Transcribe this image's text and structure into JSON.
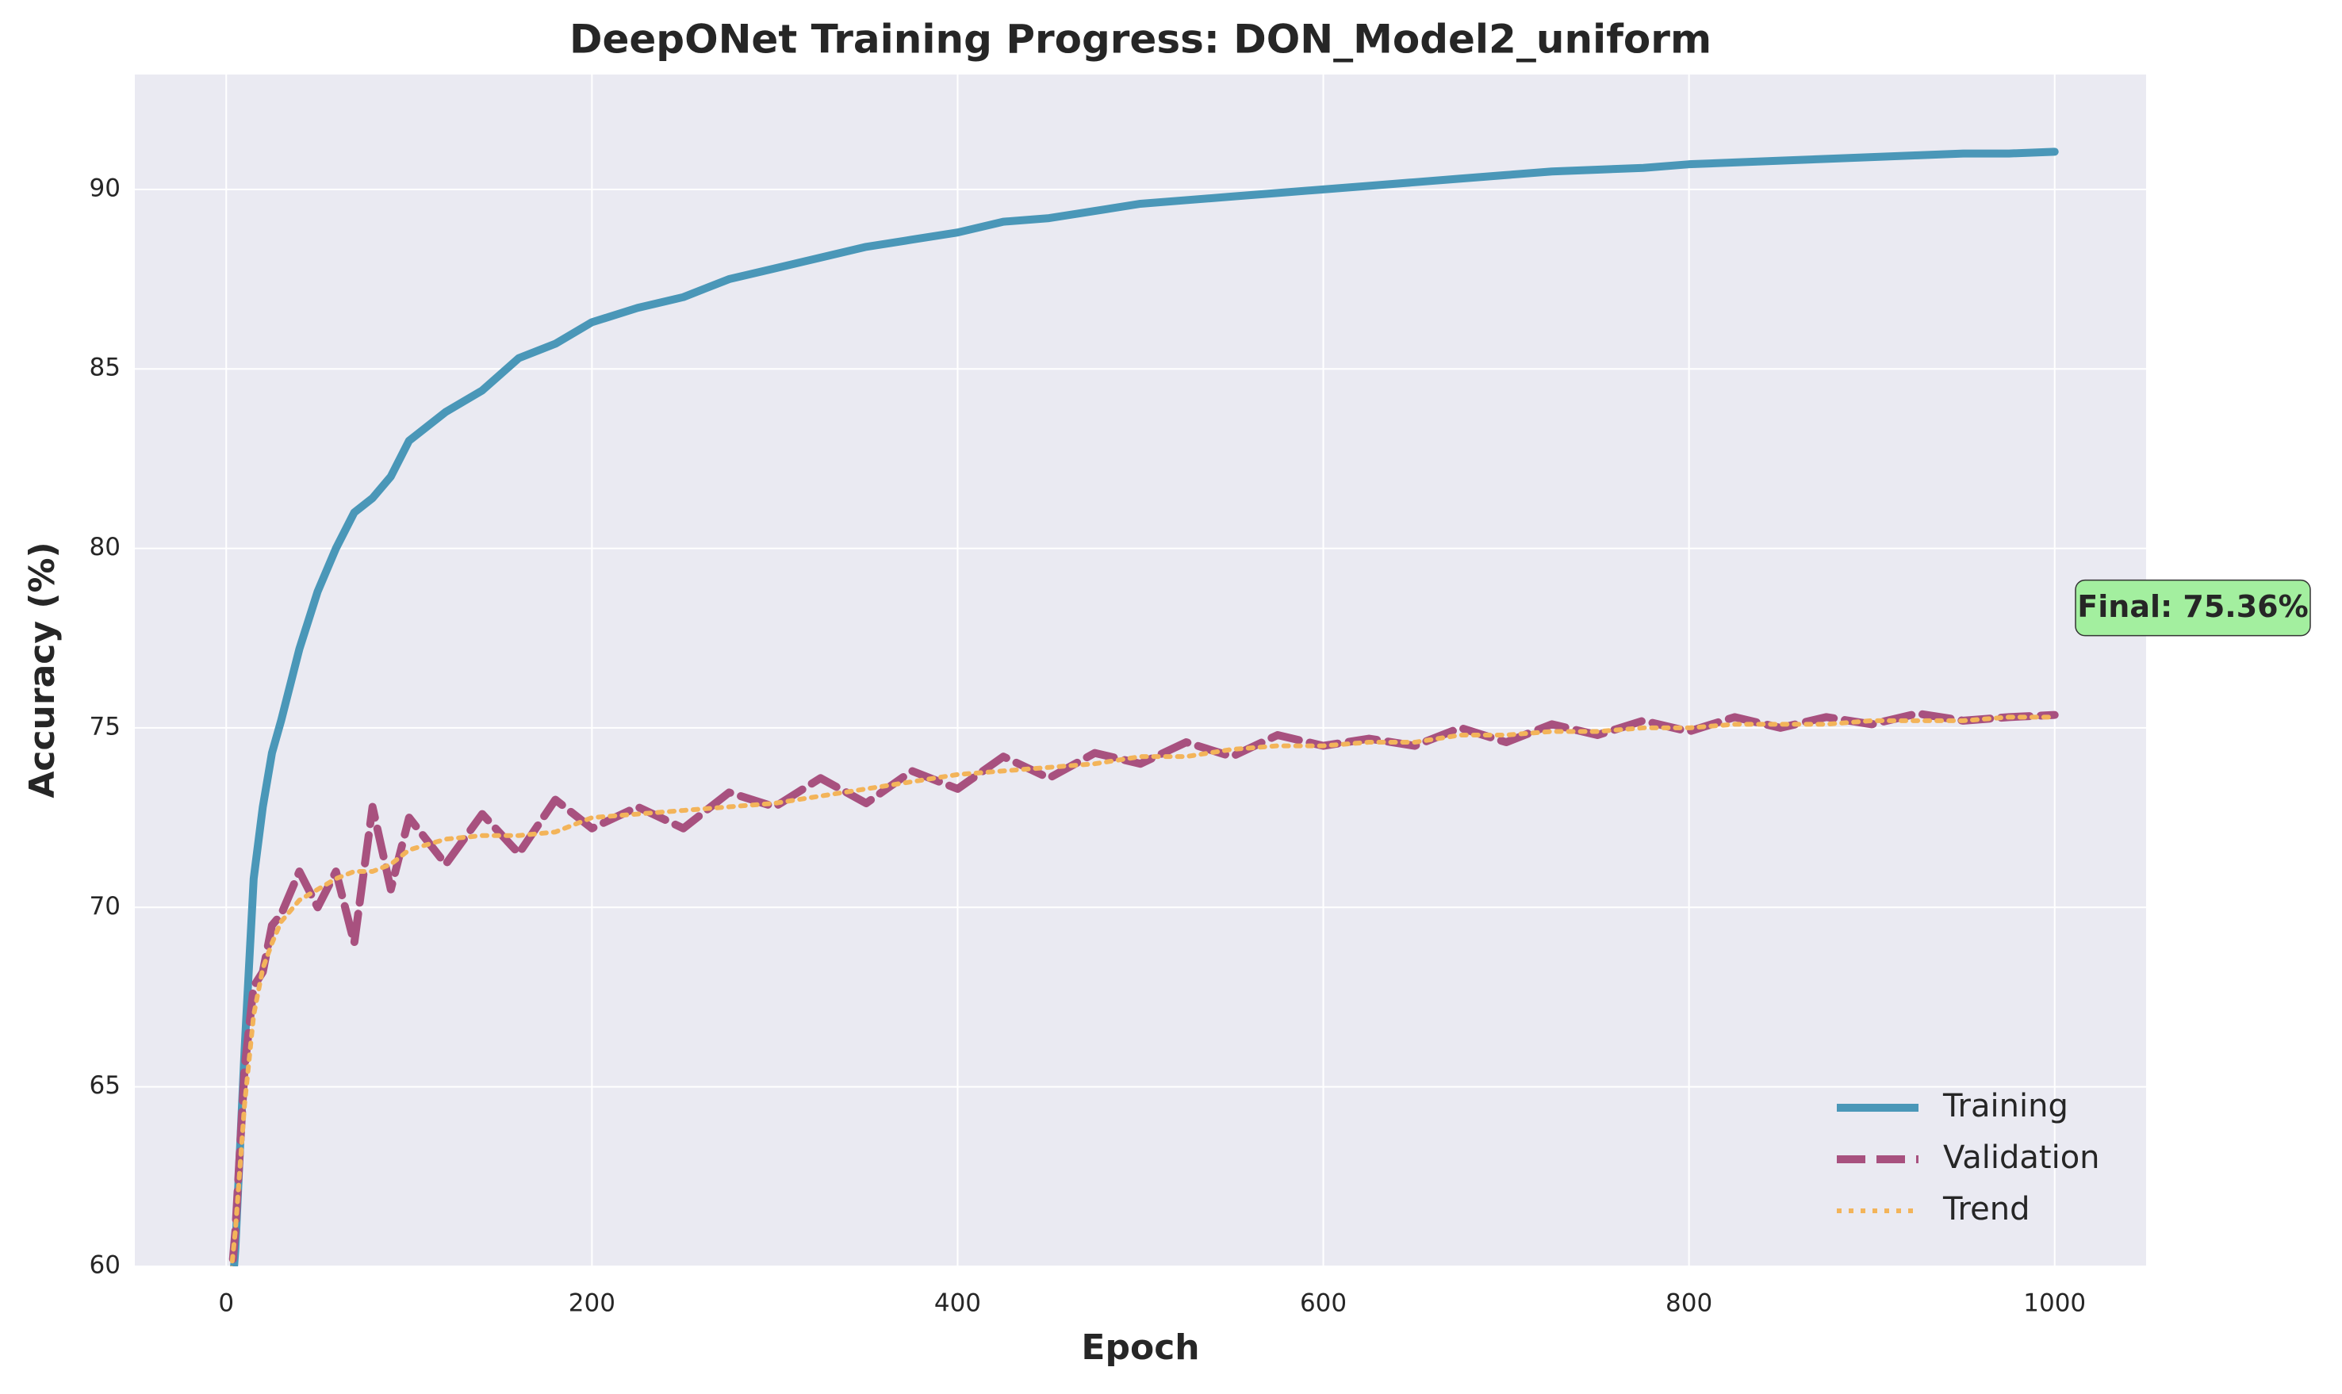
{
  "chart_data": {
    "type": "line",
    "title": "DeepONet Training Progress: DON_Model2_uniform",
    "x_label": "Epoch",
    "y_label": "Accuracy (%)",
    "annotation": "Final: 75.36%",
    "x": [
      0,
      5,
      10,
      15,
      20,
      25,
      30,
      40,
      50,
      60,
      70,
      80,
      90,
      100,
      120,
      140,
      160,
      180,
      200,
      225,
      250,
      275,
      300,
      325,
      350,
      375,
      400,
      425,
      450,
      475,
      500,
      525,
      550,
      575,
      600,
      625,
      650,
      675,
      700,
      725,
      750,
      775,
      800,
      825,
      850,
      875,
      900,
      925,
      950,
      975,
      1000
    ],
    "series": [
      {
        "name": "Training",
        "color": "#4a97b8",
        "style": "solid",
        "values": [
          57,
          60.5,
          66,
          70.8,
          72.8,
          74.3,
          75.2,
          77.2,
          78.8,
          80,
          81,
          81.4,
          82,
          83,
          83.8,
          84.4,
          85.3,
          85.7,
          86.3,
          86.7,
          87,
          87.5,
          87.8,
          88.1,
          88.4,
          88.6,
          88.8,
          89.1,
          89.2,
          89.4,
          89.6,
          89.7,
          89.8,
          89.9,
          90.0,
          90.1,
          90.2,
          90.3,
          90.4,
          90.5,
          90.55,
          90.6,
          90.7,
          90.75,
          90.8,
          90.85,
          90.9,
          90.95,
          91.0,
          91.0,
          91.05
        ]
      },
      {
        "name": "Validation",
        "color": "#a8517f",
        "style": "dashed",
        "values": [
          58,
          61,
          65.5,
          67.8,
          68.2,
          69.5,
          69.8,
          71,
          70,
          71,
          69,
          72.8,
          70.5,
          72.5,
          71.2,
          72.6,
          71.5,
          73,
          72.2,
          72.8,
          72.2,
          73.2,
          72.8,
          73.6,
          72.9,
          73.8,
          73.3,
          74.2,
          73.6,
          74.3,
          74,
          74.6,
          74.2,
          74.8,
          74.5,
          74.7,
          74.5,
          75,
          74.6,
          75.1,
          74.8,
          75.2,
          74.9,
          75.3,
          75,
          75.3,
          75.1,
          75.4,
          75.2,
          75.3,
          75.36
        ]
      },
      {
        "name": "Trend",
        "color": "#f3b45a",
        "style": "dotted",
        "values": [
          58.5,
          61,
          64.5,
          67,
          68.3,
          69,
          69.6,
          70.2,
          70.5,
          70.8,
          71,
          71,
          71.2,
          71.6,
          71.9,
          72,
          72,
          72.1,
          72.5,
          72.6,
          72.7,
          72.8,
          72.9,
          73.1,
          73.3,
          73.5,
          73.7,
          73.8,
          73.9,
          74.0,
          74.2,
          74.2,
          74.4,
          74.5,
          74.5,
          74.6,
          74.6,
          74.8,
          74.8,
          74.9,
          74.9,
          75,
          75,
          75.1,
          75.1,
          75.1,
          75.2,
          75.2,
          75.2,
          75.3,
          75.3
        ]
      }
    ],
    "xlim": [
      -50,
      1050
    ],
    "ylim": [
      60,
      93.2
    ],
    "xticks": [
      0,
      200,
      400,
      600,
      800,
      1000
    ],
    "yticks": [
      60,
      65,
      70,
      75,
      80,
      85,
      90
    ],
    "grid": true,
    "legend": "lower right"
  }
}
